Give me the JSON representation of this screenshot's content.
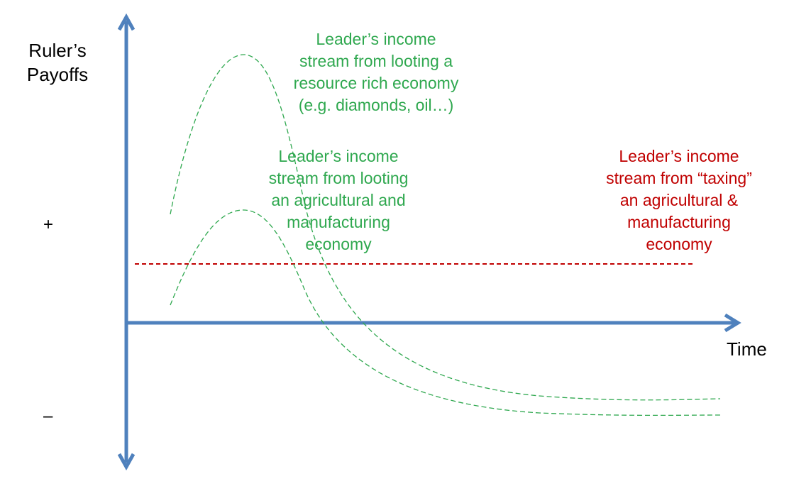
{
  "colors": {
    "axis": "#4f81bd",
    "looting": "#2fa84f",
    "taxing": "#c00000",
    "text": "#000000"
  },
  "axes": {
    "y_label": [
      "Ruler’s",
      "Payoffs"
    ],
    "x_label": "Time",
    "plus": "+",
    "minus": "–"
  },
  "annotations": {
    "resource_rich": [
      "Leader’s income",
      "stream from looting a",
      "resource rich economy",
      "(e.g. diamonds, oil…)"
    ],
    "agricultural_looting": [
      "Leader’s income",
      "stream from looting",
      "an agricultural and",
      "manufacturing",
      "economy"
    ],
    "agricultural_taxing": [
      "Leader’s income",
      "stream from “taxing”",
      "an agricultural &",
      "manufacturing",
      "economy"
    ]
  }
}
